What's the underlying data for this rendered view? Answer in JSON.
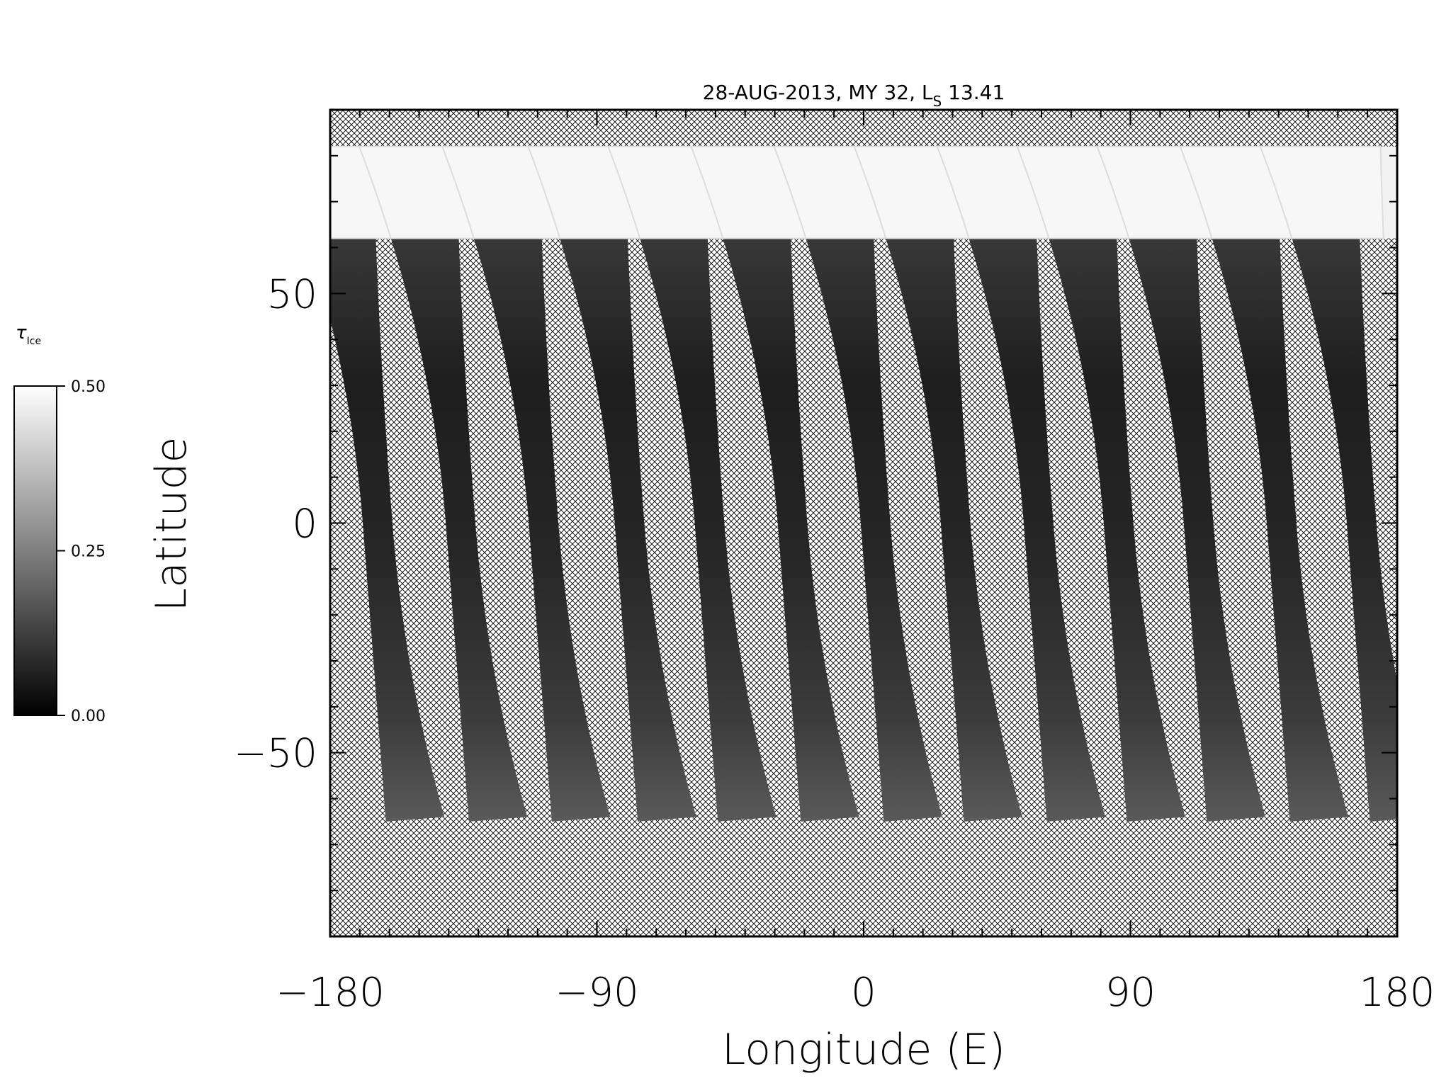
{
  "chart_data": {
    "type": "heatmap",
    "title": {
      "date": "28-AUG-2013",
      "mars_year": "MY 32",
      "ls_symbol": "L",
      "ls_subscript": "S",
      "ls_value": "13.41"
    },
    "xlabel": "Longitude (E)",
    "ylabel": "Latitude",
    "xlim": [
      -180,
      180
    ],
    "ylim": [
      -90,
      90
    ],
    "x_ticks": [
      -180,
      -90,
      0,
      90,
      180
    ],
    "x_tick_labels": [
      "−180",
      "−90",
      "0",
      "90",
      "180"
    ],
    "y_ticks": [
      -50,
      0,
      50
    ],
    "y_tick_labels": [
      "−50",
      "0",
      "50"
    ],
    "x_minor_step": 10,
    "y_minor_step": 10,
    "grid": false,
    "no_data_pattern": "crosshatch",
    "colormap": "grayscale",
    "colorbar": {
      "label_symbol": "τ",
      "label_subscript": "Ice",
      "min": 0.0,
      "max": 0.5,
      "ticks": [
        0.0,
        0.25,
        0.5
      ],
      "tick_labels": [
        "0.00",
        "0.25",
        "0.50"
      ],
      "placement": "left"
    },
    "swaths": {
      "count": 13,
      "center_lon_at_equator": [
        -164,
        -136,
        -108,
        -79,
        -52,
        -24,
        4,
        31,
        59,
        86,
        113,
        141,
        168
      ],
      "lat_range": [
        -65,
        82
      ],
      "north_cap_lat": 62,
      "north_cap_value": 0.5,
      "typical_value": 0.06
    }
  },
  "colors": {
    "background": "#ffffff",
    "axes": "#000000",
    "hatch": "#000000"
  }
}
